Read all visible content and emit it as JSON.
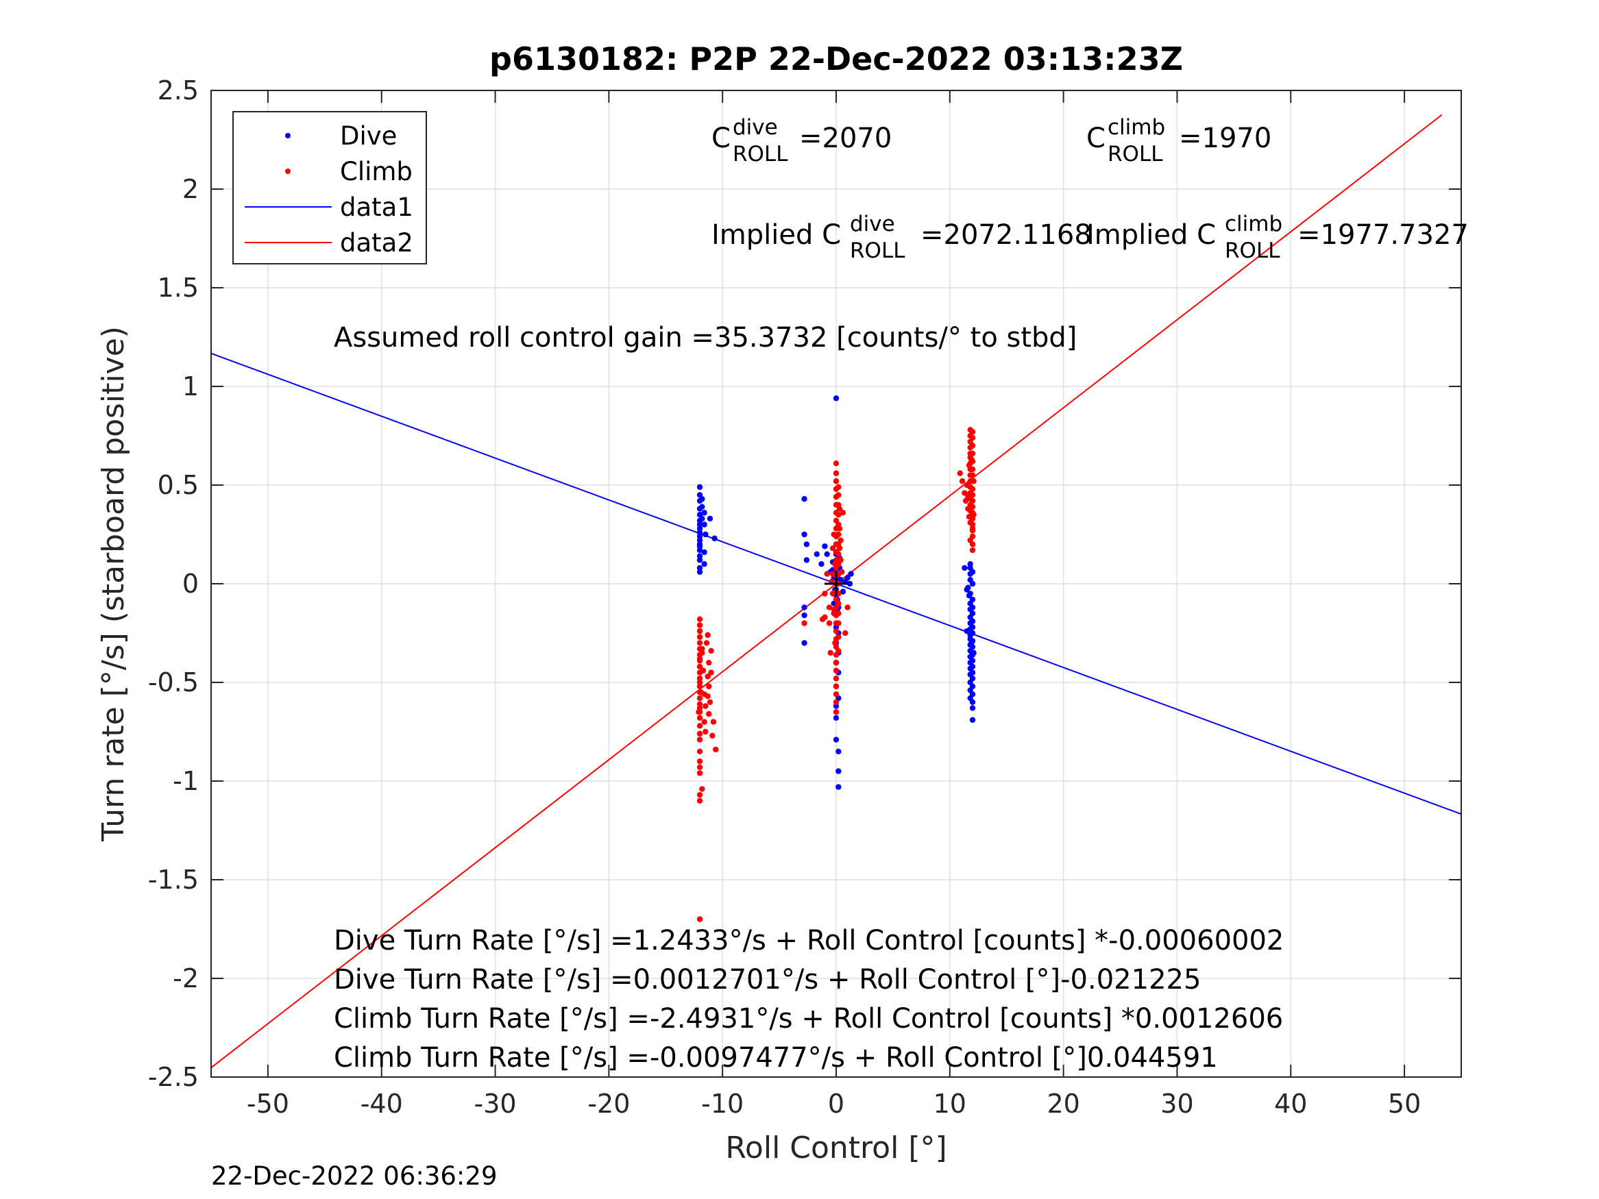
{
  "footer_timestamp": "22-Dec-2022 06:36:29",
  "chart_data": {
    "type": "scatter",
    "title": "p6130182: P2P 22-Dec-2022 03:13:23Z",
    "xlabel": "Roll Control [°]",
    "ylabel": "Turn rate [°/s] (starboard positive)",
    "xlim": [
      -55,
      55
    ],
    "ylim": [
      -2.5,
      2.5
    ],
    "xticks": [
      -50,
      -40,
      -30,
      -20,
      -10,
      0,
      10,
      20,
      30,
      40,
      50
    ],
    "yticks": [
      -2.5,
      -2,
      -1.5,
      -1,
      -0.5,
      0,
      0.5,
      1,
      1.5,
      2,
      2.5
    ],
    "xtick_labels": [
      "-50",
      "-40",
      "-30",
      "-20",
      "-10",
      "0",
      "10",
      "20",
      "30",
      "40",
      "50"
    ],
    "ytick_labels": [
      "-2.5",
      "-2",
      "-1.5",
      "-1",
      "-0.5",
      "0",
      "0.5",
      "1",
      "1.5",
      "2",
      "2.5"
    ],
    "grid": true,
    "legend_position": "top-left",
    "colors": {
      "dive": "#0000ff",
      "climb": "#ff0000",
      "marker": "#000000"
    },
    "series": [
      {
        "name": "Dive",
        "kind": "points",
        "color": "#0000ff",
        "x": [
          -12,
          -12,
          -12,
          -12,
          -12,
          -12,
          -12,
          -12,
          -12,
          -12,
          -12,
          -12,
          -12,
          -12,
          -12,
          -11.6,
          -11.6,
          -11.6,
          -11.6,
          -11.5,
          -11.8,
          -11.8,
          -11.8,
          -11.1,
          -10.7,
          -12,
          -12,
          -12,
          -2.8,
          -2.8,
          -2.6,
          -2.6,
          -2.8,
          -2.8,
          -2.8,
          -1.7,
          -1.3,
          -1,
          -0.8,
          -0.5,
          0,
          0,
          0,
          0,
          0,
          0,
          0,
          0,
          0,
          0,
          0,
          0,
          0,
          0,
          0,
          0,
          0,
          0,
          0.2,
          0.2,
          0.2,
          0.2,
          0.2,
          0.2,
          0.2,
          0.2,
          0.2,
          0.2,
          0.3,
          0.3,
          0.4,
          0.6,
          0.8,
          1,
          1.2,
          1.3,
          -0.2,
          -0.2,
          -0.1,
          -0.3,
          0.1,
          0.1,
          0.1,
          0.1,
          0.1,
          0.1,
          0.1,
          0,
          0,
          0,
          -0.3,
          11.3,
          11.5,
          11.6,
          11.7,
          11.8,
          11.8,
          11.8,
          11.8,
          11.8,
          11.8,
          11.8,
          11.8,
          11.8,
          11.8,
          11.8,
          11.8,
          11.8,
          11.8,
          11.8,
          11.8,
          11.8,
          11.8,
          11.8,
          11.8,
          11.8,
          11.8,
          12,
          12,
          12,
          12,
          12,
          12,
          12,
          12,
          12,
          12,
          12,
          12,
          12,
          12,
          12,
          12,
          12,
          12,
          12,
          12,
          11.5,
          11.9,
          12.1
        ],
        "y": [
          0.49,
          0.45,
          0.42,
          0.38,
          0.35,
          0.32,
          0.3,
          0.28,
          0.26,
          0.24,
          0.22,
          0.2,
          0.17,
          0.12,
          0.08,
          0.1,
          0.16,
          0.3,
          0.36,
          0.25,
          0.43,
          0.39,
          0.33,
          0.33,
          0.23,
          0.06,
          0.14,
          0.19,
          0.43,
          0.25,
          0.2,
          0.12,
          -0.12,
          -0.16,
          -0.3,
          0.15,
          0.1,
          0.19,
          0.15,
          0.06,
          0.94,
          0.2,
          0.15,
          0.1,
          0.06,
          0.03,
          0,
          -0.03,
          -0.06,
          -0.1,
          -0.15,
          -0.2,
          -0.3,
          -0.4,
          -0.52,
          -0.62,
          -0.68,
          -0.79,
          -0.85,
          -0.95,
          -1.03,
          -0.58,
          -0.45,
          -0.35,
          -0.25,
          -0.12,
          -0.05,
          0.02,
          0.08,
          0.13,
          0.02,
          -0.04,
          0.01,
          0.03,
          0,
          0.05,
          -0.1,
          0.03,
          -0.03,
          0.07,
          -0.05,
          0.12,
          0,
          0.04,
          -0.08,
          -0.14,
          0.09,
          0.16,
          -0.22,
          -0.4,
          0.11,
          0.08,
          -0.03,
          -0.02,
          -0.06,
          -0.1,
          0.1,
          0.08,
          0.05,
          0.02,
          -0.05,
          -0.1,
          -0.13,
          -0.17,
          -0.2,
          -0.23,
          -0.26,
          -0.28,
          -0.31,
          -0.34,
          -0.37,
          -0.4,
          -0.43,
          -0.46,
          -0.5,
          -0.54,
          -0.58,
          -0.63,
          0.06,
          0.0,
          -0.08,
          -0.12,
          -0.15,
          -0.19,
          -0.22,
          -0.25,
          -0.29,
          -0.32,
          -0.36,
          -0.39,
          -0.42,
          -0.45,
          -0.48,
          -0.52,
          -0.56,
          -0.6,
          -0.69,
          -0.24,
          -0.3,
          -0.35
        ]
      },
      {
        "name": "Climb",
        "kind": "points",
        "color": "#ff0000",
        "x": [
          -12,
          -12,
          -12,
          -12,
          -12,
          -12,
          -12,
          -12,
          -12,
          -12,
          -12,
          -12,
          -12,
          -12,
          -12,
          -12,
          -12,
          -12,
          -12,
          -12,
          -12,
          -12,
          -12,
          -12,
          -12,
          -12,
          -12,
          -12,
          -12,
          -12,
          -11.8,
          -11.7,
          -11.6,
          -11.6,
          -11.5,
          -11.5,
          -11.3,
          -11.3,
          -11.2,
          -11.2,
          -11.2,
          -11.1,
          -11,
          -11,
          -10.9,
          -10.8,
          -10.6,
          -12.1,
          -11.9,
          -11.8,
          -11.8,
          -11.4,
          -11.3,
          -2.8,
          -1.2,
          -1,
          -1,
          -0.8,
          -0.6,
          -0.6,
          -0.5,
          -0.4,
          -0.2,
          0,
          0,
          0,
          0,
          0,
          0,
          0,
          0,
          0,
          0,
          0,
          0,
          0,
          0,
          0,
          0,
          0,
          0,
          0,
          0,
          0,
          0,
          0,
          0,
          0,
          0,
          0,
          0,
          0,
          0,
          0,
          0,
          0.2,
          0.2,
          0.2,
          0.2,
          0.2,
          0.2,
          0.2,
          0.2,
          0.2,
          0.2,
          0.2,
          0.2,
          0.2,
          0.2,
          0.2,
          0.2,
          0.2,
          0.3,
          0.3,
          0.3,
          0.4,
          0.4,
          0.5,
          0.6,
          0.8,
          1,
          -0.3,
          -0.3,
          -0.3,
          -0.2,
          -0.2,
          -0.1,
          -0.1,
          10.9,
          11.1,
          11.3,
          11.4,
          11.5,
          11.6,
          11.7,
          11.7,
          11.8,
          11.8,
          11.8,
          11.8,
          11.8,
          11.8,
          11.8,
          11.8,
          11.8,
          11.8,
          11.8,
          11.8,
          11.8,
          11.8,
          11.8,
          11.8,
          11.8,
          11.8,
          12,
          12,
          12,
          12,
          12,
          12,
          12,
          12,
          12,
          12,
          12,
          12,
          12,
          12,
          12,
          12,
          12,
          12,
          12,
          12,
          11.6,
          11.9,
          12.1,
          12.1
        ],
        "y": [
          -1.7,
          -1.1,
          -1.07,
          -0.96,
          -0.93,
          -0.9,
          -0.85,
          -0.79,
          -0.76,
          -0.72,
          -0.68,
          -0.65,
          -0.61,
          -0.58,
          -0.55,
          -0.52,
          -0.48,
          -0.45,
          -0.42,
          -0.39,
          -0.36,
          -0.33,
          -0.3,
          -0.27,
          -0.24,
          -0.21,
          -0.18,
          -0.63,
          -0.5,
          -0.38,
          -0.35,
          -0.44,
          -0.56,
          -0.7,
          -0.62,
          -0.75,
          -0.47,
          -0.57,
          -0.66,
          -0.52,
          -0.4,
          -0.6,
          -0.45,
          -0.34,
          -0.77,
          -0.7,
          -0.84,
          -0.65,
          -0.55,
          -0.33,
          -1.04,
          -0.3,
          -0.26,
          -0.2,
          -0.18,
          -0.17,
          -0.05,
          0.05,
          -0.12,
          -0.2,
          -0.35,
          0.01,
          -0.13,
          0.61,
          0.56,
          0.52,
          0.48,
          0.44,
          0.4,
          0.36,
          0.32,
          0.28,
          0.24,
          0.2,
          0.16,
          0.12,
          0.08,
          0.04,
          0,
          -0.04,
          -0.08,
          -0.12,
          -0.16,
          -0.2,
          -0.24,
          -0.28,
          -0.32,
          -0.36,
          -0.4,
          -0.44,
          -0.48,
          -0.52,
          -0.56,
          -0.6,
          -0.65,
          0.49,
          0.45,
          0.4,
          0.35,
          0.3,
          0.25,
          0.2,
          0.15,
          0.1,
          0.05,
          0,
          -0.05,
          -0.1,
          -0.15,
          -0.2,
          -0.27,
          -0.34,
          0.38,
          0.28,
          0.18,
          0.22,
          0.12,
          0.06,
          0.36,
          -0.25,
          -0.12,
          0.18,
          0.05,
          -0.05,
          0.25,
          -0.15,
          0.1,
          -0.3,
          0.56,
          0.52,
          0.46,
          0.42,
          0.5,
          0.38,
          0.6,
          0.34,
          0.78,
          0.75,
          0.72,
          0.69,
          0.66,
          0.64,
          0.61,
          0.58,
          0.55,
          0.52,
          0.49,
          0.46,
          0.43,
          0.4,
          0.37,
          0.34,
          0.31,
          0.22,
          0.77,
          0.74,
          0.7,
          0.66,
          0.62,
          0.58,
          0.55,
          0.52,
          0.48,
          0.45,
          0.42,
          0.39,
          0.36,
          0.33,
          0.3,
          0.27,
          0.24,
          0.2,
          0.17,
          0.28,
          0.44,
          0.63,
          0.52,
          0.35
        ]
      },
      {
        "name": "data1",
        "kind": "line",
        "color": "#0000ff",
        "x": [
          -55,
          55
        ],
        "y": [
          1.1674,
          -1.1674
        ]
      },
      {
        "name": "data2",
        "kind": "line",
        "color": "#ff0000",
        "x": [
          -55,
          53.3
        ],
        "y": [
          -2.4525,
          2.3768
        ]
      }
    ],
    "annotations": {
      "c_dive": {
        "main": "C",
        "sup": "dive",
        "sub": "ROLL",
        "value": "=2070"
      },
      "c_climb": {
        "main": "C",
        "sup": "climb",
        "sub": "ROLL",
        "value": "=1970"
      },
      "implied_dive": {
        "main": "Implied C",
        "sup": "dive",
        "sub": "ROLL",
        "value": "=2072.1168"
      },
      "implied_climb": {
        "main": "Implied C",
        "sup": "climb",
        "sub": "ROLL",
        "value": "=1977.7327"
      },
      "gain": "Assumed roll control gain =35.3732 [counts/° to stbd]",
      "equations": [
        "Dive Turn Rate [°/s] =1.2433°/s + Roll Control [counts] *-0.00060002",
        "Dive Turn Rate [°/s] =0.0012701°/s + Roll Control [°]-0.021225",
        "Climb Turn Rate [°/s] =-2.4931°/s + Roll Control [counts] *0.0012606",
        "Climb Turn Rate [°/s] =-0.0097477°/s + Roll Control [°]0.044591"
      ]
    }
  }
}
